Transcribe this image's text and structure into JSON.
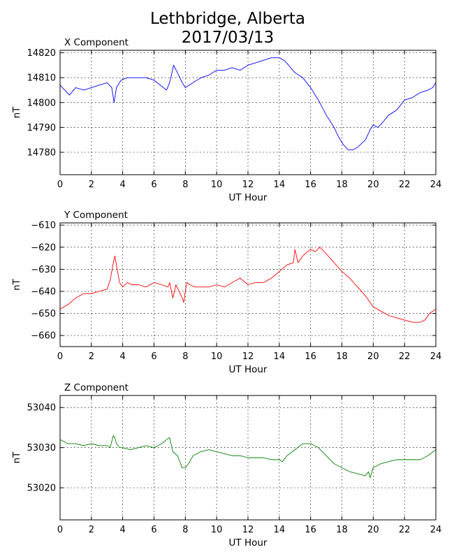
{
  "title_line1": "Lethbridge, Alberta",
  "title_line2": "2017/03/13",
  "chart_data": [
    {
      "type": "line",
      "title": "X Component",
      "xlabel": "UT Hour",
      "ylabel": "nT",
      "xlim": [
        0,
        24
      ],
      "ylim": [
        14771,
        14821
      ],
      "xticks": [
        0,
        2,
        4,
        6,
        8,
        10,
        12,
        14,
        16,
        18,
        20,
        22,
        24
      ],
      "yticks": [
        14780,
        14790,
        14800,
        14810,
        14820
      ],
      "grid": true,
      "series": [
        {
          "color": "#0000ff",
          "x": [
            0,
            0.3,
            0.6,
            1.0,
            1.5,
            2.0,
            2.5,
            3.0,
            3.3,
            3.45,
            3.6,
            3.9,
            4.3,
            5.0,
            5.5,
            6.0,
            6.4,
            6.8,
            7.0,
            7.25,
            7.5,
            7.8,
            8.0,
            8.5,
            9.0,
            9.5,
            10.0,
            10.5,
            11.0,
            11.5,
            12.0,
            12.5,
            13.0,
            13.5,
            14.0,
            14.3,
            14.6,
            15.0,
            15.5,
            16.0,
            16.5,
            17.0,
            17.5,
            17.8,
            18.1,
            18.4,
            18.7,
            19.0,
            19.5,
            19.8,
            20.0,
            20.3,
            20.6,
            21.0,
            21.5,
            22.0,
            22.5,
            23.0,
            23.5,
            23.8,
            24.0
          ],
          "y": [
            14807,
            14805,
            14803,
            14806,
            14805,
            14806,
            14807,
            14808,
            14806,
            14800,
            14806,
            14809,
            14810,
            14810,
            14810,
            14809,
            14807,
            14805,
            14808,
            14815,
            14812,
            14808,
            14806,
            14808,
            14810,
            14811,
            14813,
            14813,
            14814,
            14813,
            14815,
            14816,
            14817,
            14818,
            14818,
            14817,
            14815,
            14812,
            14810,
            14806,
            14801,
            14795,
            14790,
            14786,
            14783,
            14781,
            14781,
            14782,
            14785,
            14789,
            14791,
            14790,
            14792,
            14795,
            14797,
            14801,
            14802,
            14804,
            14805,
            14806,
            14808
          ]
        }
      ]
    },
    {
      "type": "line",
      "title": "Y Component",
      "xlabel": "UT Hour",
      "ylabel": "nT",
      "xlim": [
        0,
        24
      ],
      "ylim": [
        -665,
        -609
      ],
      "xticks": [
        0,
        2,
        4,
        6,
        8,
        10,
        12,
        14,
        16,
        18,
        20,
        22,
        24
      ],
      "yticks": [
        -610,
        -620,
        -630,
        -640,
        -650,
        -660
      ],
      "grid": true,
      "series": [
        {
          "color": "#ff0000",
          "x": [
            0,
            0.5,
            1.0,
            1.5,
            2.0,
            2.5,
            3.0,
            3.2,
            3.4,
            3.5,
            3.6,
            3.8,
            4.0,
            4.3,
            4.6,
            5.0,
            5.5,
            6.0,
            6.5,
            6.9,
            7.0,
            7.2,
            7.4,
            7.6,
            7.8,
            7.9,
            8.0,
            8.1,
            8.3,
            8.6,
            9.0,
            9.5,
            10.0,
            10.5,
            11.0,
            11.5,
            12.0,
            12.5,
            13.0,
            13.5,
            14.0,
            14.5,
            14.9,
            15.0,
            15.2,
            15.5,
            15.8,
            16.0,
            16.3,
            16.6,
            17.0,
            17.5,
            18.0,
            18.5,
            19.0,
            19.5,
            20.0,
            20.5,
            21.0,
            21.5,
            22.0,
            22.5,
            23.0,
            23.3,
            23.6,
            24.0
          ],
          "y": [
            -648,
            -646,
            -643,
            -641,
            -641,
            -640,
            -639,
            -635,
            -627,
            -624,
            -628,
            -636,
            -638,
            -636,
            -637,
            -637,
            -638,
            -636,
            -637,
            -638,
            -636,
            -643,
            -637,
            -640,
            -643,
            -645,
            -640,
            -636,
            -637,
            -638,
            -638,
            -638,
            -637,
            -638,
            -636,
            -634,
            -637,
            -636,
            -636,
            -634,
            -631,
            -628,
            -627,
            -621,
            -627,
            -624,
            -622,
            -621,
            -622,
            -620,
            -623,
            -627,
            -631,
            -634,
            -638,
            -642,
            -647,
            -649,
            -651,
            -652,
            -653,
            -654,
            -654,
            -653,
            -650,
            -648
          ]
        }
      ]
    },
    {
      "type": "line",
      "title": "Z Component",
      "xlabel": "UT Hour",
      "ylabel": "nT",
      "xlim": [
        0,
        24
      ],
      "ylim": [
        53012,
        53043
      ],
      "xticks": [
        0,
        2,
        4,
        6,
        8,
        10,
        12,
        14,
        16,
        18,
        20,
        22,
        24
      ],
      "yticks": [
        53020,
        53030,
        53040
      ],
      "grid": true,
      "series": [
        {
          "color": "#008000",
          "x": [
            0,
            0.5,
            1.0,
            1.5,
            2.0,
            2.5,
            3.0,
            3.2,
            3.4,
            3.5,
            3.6,
            3.8,
            4.0,
            4.5,
            5.0,
            5.5,
            6.0,
            6.5,
            6.8,
            7.0,
            7.2,
            7.5,
            7.8,
            8.0,
            8.2,
            8.5,
            9.0,
            9.5,
            10.0,
            10.5,
            11.0,
            11.5,
            12.0,
            12.5,
            13.0,
            13.5,
            14.0,
            14.2,
            14.5,
            15.0,
            15.5,
            16.0,
            16.5,
            17.0,
            17.5,
            18.0,
            18.5,
            19.0,
            19.5,
            19.7,
            19.8,
            20.0,
            20.5,
            21.0,
            21.5,
            22.0,
            22.5,
            23.0,
            23.5,
            24.0
          ],
          "y": [
            53032,
            53031,
            53031,
            53030.5,
            53031,
            53030.5,
            53030.5,
            53030,
            53033,
            53032.5,
            53031,
            53030,
            53030,
            53029.5,
            53030,
            53030.5,
            53030,
            53031,
            53032,
            53032.5,
            53029,
            53028,
            53025,
            53025,
            53026,
            53028,
            53029,
            53029.5,
            53029,
            53028.5,
            53028,
            53028,
            53027.5,
            53027.5,
            53027.5,
            53027,
            53027,
            53026.5,
            53028,
            53029.5,
            53031,
            53031,
            53030,
            53028,
            53026,
            53025,
            53024,
            53023.5,
            53023,
            53024,
            53022.5,
            53025,
            53026,
            53026.5,
            53027,
            53027,
            53027,
            53027,
            53028,
            53029.5
          ]
        }
      ]
    }
  ]
}
